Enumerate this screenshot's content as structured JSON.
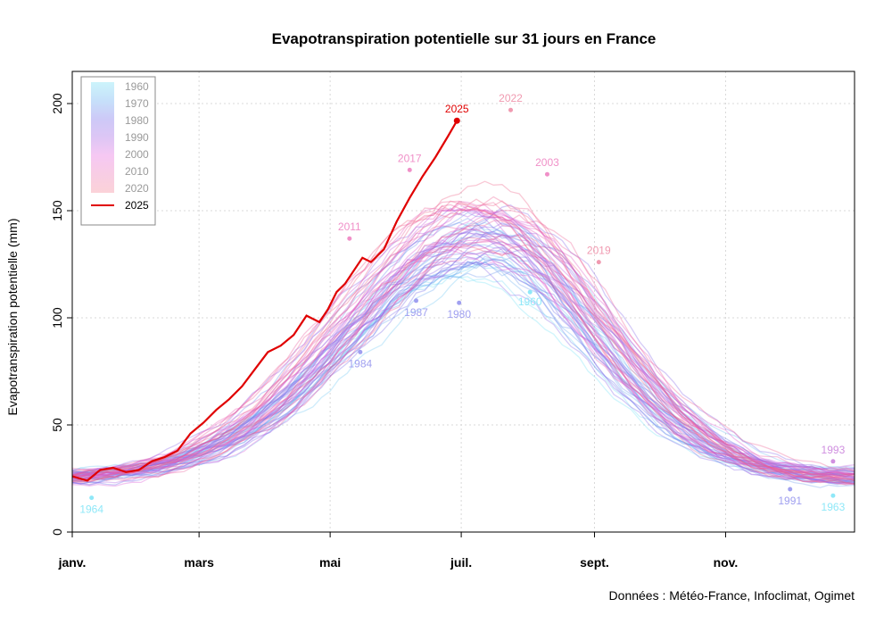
{
  "chart_data": {
    "type": "line",
    "title": "Evapotranspiration potentielle sur 31 jours en France",
    "ylabel": "Evapotranspiration potentielle (mm)",
    "xlabel": "",
    "ylim": [
      0,
      215
    ],
    "xlim": [
      1,
      365
    ],
    "yticks": [
      0,
      50,
      100,
      150,
      200
    ],
    "month_ticks": [
      {
        "label": "janv.",
        "day": 1
      },
      {
        "label": "mars",
        "day": 60
      },
      {
        "label": "mai",
        "day": 121
      },
      {
        "label": "juil.",
        "day": 182
      },
      {
        "label": "sept.",
        "day": 244
      },
      {
        "label": "nov.",
        "day": 305
      }
    ],
    "grid": true,
    "legend": {
      "position": "top-left",
      "decades": [
        "1960",
        "1970",
        "1980",
        "1990",
        "2000",
        "2010",
        "2020"
      ],
      "decade_colors": [
        "#ccf4fb",
        "#c6e0fa",
        "#cdc9f7",
        "#ddc6f5",
        "#f6c8f3",
        "#f8cde4",
        "#fbd2d8"
      ],
      "highlight_label": "2025",
      "highlight_color": "#e00000"
    },
    "year_range": [
      1959,
      2024
    ],
    "highlight_series": {
      "name": "2025",
      "color": "#e00000",
      "x": [
        1,
        8,
        14,
        20,
        26,
        32,
        38,
        44,
        50,
        56,
        62,
        68,
        74,
        80,
        86,
        92,
        98,
        104,
        110,
        116,
        120,
        124,
        128,
        132,
        136,
        140,
        146,
        152,
        158,
        164,
        170,
        176,
        180
      ],
      "y": [
        26,
        24,
        29,
        30,
        28,
        29,
        33,
        35,
        38,
        46,
        51,
        57,
        62,
        68,
        76,
        84,
        87,
        92,
        101,
        98,
        104,
        112,
        116,
        122,
        128,
        126,
        132,
        145,
        156,
        166,
        175,
        185,
        192
      ]
    },
    "annotations": [
      {
        "label": "1964",
        "day": 10,
        "value": 16,
        "color": "#8fe8f8"
      },
      {
        "label": "2011",
        "day": 130,
        "value": 137,
        "color": "#f090c8"
      },
      {
        "label": "1984",
        "day": 135,
        "value": 84,
        "color": "#a0a0f0"
      },
      {
        "label": "2017",
        "day": 158,
        "value": 169,
        "color": "#f090c8"
      },
      {
        "label": "1987",
        "day": 161,
        "value": 108,
        "color": "#a0a0f0"
      },
      {
        "label": "2025",
        "day": 180,
        "value": 192,
        "color": "#e00000"
      },
      {
        "label": "1980",
        "day": 181,
        "value": 107,
        "color": "#a0a0f0"
      },
      {
        "label": "2022",
        "day": 205,
        "value": 197,
        "color": "#f09ab0"
      },
      {
        "label": "1960",
        "day": 214,
        "value": 112,
        "color": "#8fe8f8"
      },
      {
        "label": "2003",
        "day": 222,
        "value": 167,
        "color": "#f090c8"
      },
      {
        "label": "2019",
        "day": 246,
        "value": 126,
        "color": "#f09ab0"
      },
      {
        "label": "1991",
        "day": 335,
        "value": 20,
        "color": "#a0a0f0"
      },
      {
        "label": "1993",
        "day": 355,
        "value": 33,
        "color": "#d090e0"
      },
      {
        "label": "1963",
        "day": 355,
        "value": 17,
        "color": "#8fe8f8"
      }
    ],
    "source": "Données : Météo-France, Infoclimat, Ogimet"
  }
}
